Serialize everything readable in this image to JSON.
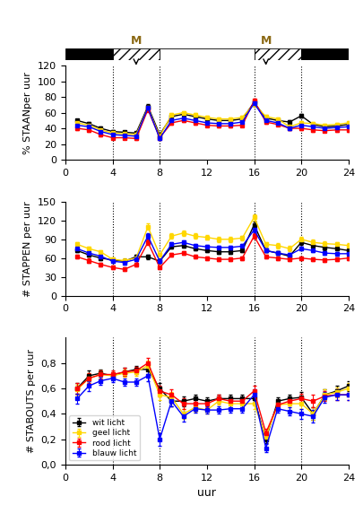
{
  "chart_data": [
    {
      "type": "line",
      "y_label": "% STAANper uur",
      "x": [
        1,
        2,
        3,
        4,
        5,
        6,
        7,
        8,
        9,
        10,
        11,
        12,
        13,
        14,
        15,
        16,
        17,
        18,
        19,
        20,
        21,
        22,
        23,
        24
      ],
      "xlim": [
        0,
        24
      ],
      "xticks": [
        0,
        4,
        8,
        12,
        16,
        20,
        24
      ],
      "ylim": [
        0,
        120
      ],
      "yticks": [
        0,
        20,
        40,
        60,
        80,
        100,
        120
      ],
      "vlines": [
        4,
        8,
        16,
        20
      ],
      "series": [
        {
          "color": "#000000",
          "marker": "square",
          "values": [
            50,
            46,
            40,
            36,
            35,
            34,
            68,
            32,
            55,
            58,
            55,
            52,
            50,
            50,
            52,
            73,
            53,
            50,
            48,
            56,
            45,
            42,
            43,
            45
          ],
          "error": [
            2,
            2,
            2,
            2,
            2,
            2,
            3,
            2,
            2,
            2,
            2,
            2,
            2,
            2,
            2,
            3,
            2,
            2,
            2,
            2,
            2,
            2,
            2,
            2
          ]
        },
        {
          "color": "#FFD700",
          "marker": "square",
          "values": [
            47,
            44,
            38,
            34,
            33,
            32,
            66,
            30,
            57,
            60,
            57,
            54,
            52,
            52,
            54,
            71,
            55,
            52,
            42,
            47,
            46,
            44,
            45,
            47
          ],
          "error": [
            2,
            2,
            2,
            2,
            2,
            2,
            3,
            2,
            2,
            2,
            2,
            2,
            2,
            2,
            2,
            3,
            2,
            2,
            2,
            2,
            2,
            2,
            2,
            2
          ]
        },
        {
          "color": "#FF0000",
          "marker": "square",
          "values": [
            40,
            38,
            32,
            28,
            28,
            27,
            64,
            28,
            47,
            50,
            47,
            44,
            43,
            43,
            44,
            75,
            48,
            45,
            40,
            40,
            38,
            37,
            38,
            38
          ],
          "error": [
            2,
            2,
            2,
            2,
            2,
            2,
            3,
            2,
            2,
            2,
            2,
            2,
            2,
            2,
            2,
            3,
            2,
            2,
            2,
            2,
            2,
            2,
            2,
            2
          ]
        },
        {
          "color": "#0000FF",
          "marker": "square",
          "values": [
            44,
            42,
            36,
            32,
            31,
            30,
            66,
            27,
            50,
            53,
            50,
            47,
            46,
            46,
            48,
            72,
            50,
            47,
            40,
            44,
            42,
            40,
            41,
            42
          ],
          "error": [
            2,
            2,
            2,
            2,
            2,
            2,
            3,
            2,
            2,
            2,
            2,
            2,
            2,
            2,
            2,
            3,
            2,
            2,
            2,
            2,
            2,
            2,
            2,
            2
          ]
        }
      ],
      "header": {
        "segments": [
          {
            "start": 0,
            "end": 4,
            "fill": "black",
            "hatched": false
          },
          {
            "start": 4,
            "end": 8,
            "fill": "white",
            "hatched": true
          },
          {
            "start": 8,
            "end": 16,
            "fill": "white",
            "hatched": false
          },
          {
            "start": 16,
            "end": 20,
            "fill": "white",
            "hatched": true
          },
          {
            "start": 20,
            "end": 24,
            "fill": "black",
            "hatched": false
          }
        ],
        "marks": [
          {
            "x": 6,
            "text": "M",
            "color": "#8B6914",
            "arrow": true
          },
          {
            "x": 17,
            "text": "M",
            "color": "#8B6914",
            "arrow": true
          }
        ]
      }
    },
    {
      "type": "line",
      "y_label": "# STAPPEN per uur",
      "x": [
        1,
        2,
        3,
        4,
        5,
        6,
        7,
        8,
        9,
        10,
        11,
        12,
        13,
        14,
        15,
        16,
        17,
        18,
        19,
        20,
        21,
        22,
        23,
        24
      ],
      "xlim": [
        0,
        24
      ],
      "xticks": [
        0,
        4,
        8,
        12,
        16,
        20,
        24
      ],
      "ylim": [
        0,
        150
      ],
      "yticks": [
        0,
        30,
        60,
        90,
        120,
        150
      ],
      "vlines": [
        4,
        8,
        16,
        20
      ],
      "series": [
        {
          "color": "#000000",
          "marker": "square",
          "values": [
            72,
            65,
            60,
            57,
            55,
            62,
            62,
            55,
            78,
            80,
            75,
            72,
            70,
            70,
            72,
            113,
            72,
            68,
            63,
            85,
            80,
            77,
            75,
            72
          ],
          "error": [
            3,
            3,
            3,
            3,
            3,
            3,
            4,
            3,
            3,
            3,
            3,
            3,
            3,
            3,
            3,
            5,
            3,
            3,
            3,
            4,
            4,
            4,
            3,
            3
          ]
        },
        {
          "color": "#FFD700",
          "marker": "square",
          "values": [
            82,
            75,
            70,
            58,
            56,
            60,
            110,
            65,
            95,
            100,
            95,
            93,
            90,
            90,
            92,
            125,
            82,
            80,
            75,
            90,
            85,
            83,
            82,
            80
          ],
          "error": [
            3,
            3,
            3,
            3,
            3,
            3,
            5,
            3,
            4,
            4,
            4,
            4,
            4,
            4,
            4,
            5,
            4,
            4,
            4,
            4,
            4,
            4,
            4,
            4
          ]
        },
        {
          "color": "#FF0000",
          "marker": "square",
          "values": [
            62,
            56,
            50,
            45,
            42,
            50,
            85,
            45,
            65,
            68,
            62,
            60,
            58,
            58,
            60,
            95,
            62,
            60,
            58,
            60,
            58,
            57,
            58,
            60
          ],
          "error": [
            3,
            3,
            3,
            3,
            3,
            3,
            4,
            3,
            3,
            3,
            3,
            3,
            3,
            3,
            3,
            4,
            3,
            3,
            3,
            3,
            3,
            3,
            3,
            3
          ]
        },
        {
          "color": "#0000FF",
          "marker": "square",
          "values": [
            75,
            68,
            63,
            55,
            53,
            58,
            95,
            55,
            82,
            85,
            80,
            78,
            77,
            77,
            79,
            105,
            72,
            68,
            65,
            75,
            72,
            68,
            67,
            67
          ],
          "error": [
            3,
            3,
            3,
            3,
            3,
            3,
            4,
            3,
            3,
            3,
            3,
            3,
            3,
            3,
            3,
            4,
            3,
            3,
            3,
            3,
            3,
            3,
            3,
            3
          ]
        }
      ]
    },
    {
      "type": "line",
      "y_label": "# STABOUTS per uur",
      "x_label": "uur",
      "x": [
        1,
        2,
        3,
        4,
        5,
        6,
        7,
        8,
        9,
        10,
        11,
        12,
        13,
        14,
        15,
        16,
        17,
        18,
        19,
        20,
        21,
        22,
        23,
        24
      ],
      "xlim": [
        0,
        24
      ],
      "xticks": [
        0,
        4,
        8,
        12,
        16,
        20,
        24
      ],
      "ylim": [
        0.0,
        1.0
      ],
      "yticks": [
        {
          "value": 0.0,
          "label": "0,0"
        },
        {
          "value": 0.2,
          "label": "0,2"
        },
        {
          "value": 0.4,
          "label": "0,4"
        },
        {
          "value": 0.6,
          "label": "0,6"
        },
        {
          "value": 0.8,
          "label": "0,8"
        }
      ],
      "vlines": [
        4,
        8,
        16,
        20
      ],
      "legend": "lower left",
      "series": [
        {
          "name": "wit licht",
          "color": "#000000",
          "marker": "square",
          "values": [
            0.6,
            0.7,
            0.72,
            0.7,
            0.73,
            0.75,
            0.75,
            0.6,
            0.5,
            0.5,
            0.52,
            0.5,
            0.52,
            0.52,
            0.52,
            0.52,
            0.2,
            0.5,
            0.52,
            0.53,
            0.4,
            0.55,
            0.58,
            0.62
          ],
          "error": [
            0.04,
            0.04,
            0.03,
            0.03,
            0.03,
            0.03,
            0.04,
            0.04,
            0.04,
            0.04,
            0.03,
            0.03,
            0.03,
            0.03,
            0.03,
            0.04,
            0.03,
            0.03,
            0.03,
            0.04,
            0.05,
            0.04,
            0.04,
            0.04
          ]
        },
        {
          "name": "geel licht",
          "color": "#FFD700",
          "marker": "square",
          "values": [
            0.59,
            0.68,
            0.71,
            0.7,
            0.72,
            0.73,
            0.78,
            0.55,
            0.53,
            0.4,
            0.45,
            0.43,
            0.5,
            0.48,
            0.48,
            0.48,
            0.22,
            0.47,
            0.48,
            0.48,
            0.4,
            0.55,
            0.57,
            0.6
          ],
          "error": [
            0.04,
            0.04,
            0.03,
            0.03,
            0.03,
            0.03,
            0.04,
            0.04,
            0.04,
            0.04,
            0.03,
            0.03,
            0.03,
            0.03,
            0.03,
            0.04,
            0.03,
            0.03,
            0.03,
            0.04,
            0.05,
            0.04,
            0.04,
            0.04
          ]
        },
        {
          "name": "rood licht",
          "color": "#FF0000",
          "marker": "square",
          "values": [
            0.6,
            0.68,
            0.71,
            0.71,
            0.73,
            0.74,
            0.8,
            0.58,
            0.55,
            0.48,
            0.48,
            0.48,
            0.52,
            0.5,
            0.5,
            0.58,
            0.25,
            0.47,
            0.5,
            0.52,
            0.5,
            0.54,
            0.55,
            0.55
          ],
          "error": [
            0.04,
            0.04,
            0.03,
            0.03,
            0.03,
            0.03,
            0.04,
            0.04,
            0.04,
            0.04,
            0.03,
            0.03,
            0.03,
            0.03,
            0.03,
            0.04,
            0.03,
            0.03,
            0.03,
            0.04,
            0.05,
            0.04,
            0.04,
            0.04
          ]
        },
        {
          "name": "blauw licht",
          "color": "#0000FF",
          "marker": "square",
          "values": [
            0.52,
            0.62,
            0.66,
            0.68,
            0.65,
            0.65,
            0.7,
            0.2,
            0.5,
            0.38,
            0.44,
            0.43,
            0.43,
            0.44,
            0.44,
            0.55,
            0.13,
            0.44,
            0.42,
            0.4,
            0.38,
            0.53,
            0.55,
            0.55
          ],
          "error": [
            0.04,
            0.04,
            0.03,
            0.03,
            0.03,
            0.03,
            0.04,
            0.05,
            0.04,
            0.04,
            0.03,
            0.03,
            0.03,
            0.03,
            0.03,
            0.04,
            0.03,
            0.03,
            0.03,
            0.04,
            0.05,
            0.04,
            0.04,
            0.04
          ]
        }
      ]
    }
  ]
}
